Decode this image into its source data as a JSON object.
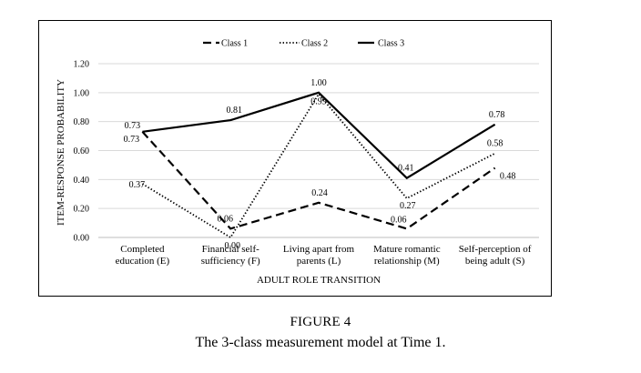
{
  "figure": {
    "label": "FIGURE 4",
    "caption": "The 3-class measurement model at Time 1."
  },
  "chart_data": {
    "type": "line",
    "xlabel": "ADULT ROLE TRANSITION",
    "ylabel": "ITEM-RESPONSE PROBABILITY",
    "ylim": [
      0,
      1.2
    ],
    "yticks": [
      "0.00",
      "0.20",
      "0.40",
      "0.60",
      "0.80",
      "1.00",
      "1.20"
    ],
    "grid": true,
    "legend_position": "top",
    "categories": [
      [
        "Completed",
        "education (E)"
      ],
      [
        "Financial self-",
        "sufficiency (F)"
      ],
      [
        "Living apart from",
        "parents (L)"
      ],
      [
        "Mature romantic",
        "relationship (M)"
      ],
      [
        "Self-perception of",
        "being adult (S)"
      ]
    ],
    "series": [
      {
        "name": "Class 1",
        "style": "dashed",
        "color": "#000000",
        "values": [
          0.73,
          0.06,
          0.24,
          0.06,
          0.48
        ],
        "labels": [
          "0.73",
          "0.06",
          "0.24",
          "0.06",
          "0.48"
        ]
      },
      {
        "name": "Class 2",
        "style": "dotted",
        "color": "#000000",
        "values": [
          0.37,
          0.0,
          0.99,
          0.27,
          0.58
        ],
        "labels": [
          "0.37",
          "0.00",
          "0.99",
          "0.27",
          "0.58"
        ]
      },
      {
        "name": "Class 3",
        "style": "solid",
        "color": "#000000",
        "values": [
          0.73,
          0.81,
          1.0,
          0.41,
          0.78
        ],
        "labels": [
          "0.73",
          "0.81",
          "1.00",
          "0.41",
          "0.78"
        ]
      }
    ]
  }
}
